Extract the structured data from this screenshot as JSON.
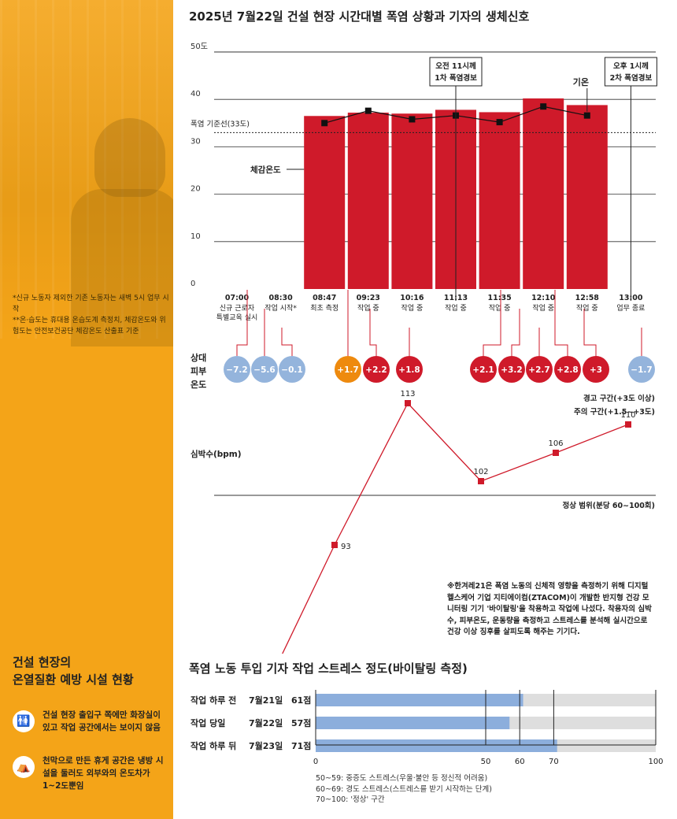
{
  "title": "2025년 7월22일 건설 현장 시간대별 폭염 상황과 기자의 생체신호",
  "sidebar": {
    "notes": [
      "*신규 노동자 제외한 기존 노동자는 새벽 5시 업무 시작",
      "**온·습도는 휴대용 온습도계 측정치, 체감온도와 위험도는 안전보건공단 체감온도 산출표 기준"
    ],
    "facility_title_1": "건설 현장의",
    "facility_title_2": "온열질환 예방 시설 현황",
    "items": [
      {
        "icon": "toilet-icon",
        "glyph": "🚻",
        "text": "건설 현장 출입구 쪽에만 화장실이 있고 작업 공간에서는 보이지 않음"
      },
      {
        "icon": "tent-icon",
        "glyph": "⛺",
        "text": "천막으로 만든 휴게 공간은 냉방 시설을 둘러도 외부와의 온도차가 1~2도뿐임"
      }
    ]
  },
  "chart_data": [
    {
      "type": "bar",
      "title": "2025년 7월22일 건설 현장 시간대별 폭염 상황과 기자의 생체신호",
      "ylim": [
        0,
        50
      ],
      "yticks": [
        "0",
        "10",
        "20",
        "30",
        "40",
        "50도"
      ],
      "threshold": {
        "value": 33,
        "label": "폭염 기준선(33도)"
      },
      "times": [
        "07:00",
        "08:30",
        "08:47",
        "09:23",
        "10:16",
        "11:13",
        "11:35",
        "12:10",
        "12:58",
        "13:00"
      ],
      "events": [
        "신규 근로자 특별교육 실시",
        "작업 시작*",
        "최초 측정",
        "작업 중",
        "작업 중",
        "작업 중",
        "작업 중",
        "작업 중",
        "작업 중",
        "업무 종료"
      ],
      "bars": {
        "label": "체감온도",
        "indices": [
          2,
          3,
          4,
          5,
          6,
          7,
          8
        ],
        "values": [
          36.5,
          37.2,
          37.0,
          37.8,
          37.3,
          40.2,
          38.8
        ]
      },
      "line": {
        "label": "기온",
        "indices": [
          2,
          3,
          4,
          5,
          6,
          7,
          8
        ],
        "values": [
          35.0,
          37.6,
          35.8,
          36.6,
          35.2,
          38.5,
          36.6
        ]
      },
      "alerts": [
        {
          "line1": "오전 11시께",
          "line2": "1차 폭염경보",
          "index": 5
        },
        {
          "line1": "오후 1시께",
          "line2": "2차 폭염경보",
          "index": 9
        }
      ]
    },
    {
      "type": "table",
      "title": "상대 피부 온도",
      "label_lines": [
        "상대",
        "피부",
        "온도"
      ],
      "values": [
        "−7.2",
        "−5.6",
        "−0.1",
        "+1.7",
        "+2.2",
        "+1.8",
        "+2.1",
        "+3.2",
        "+2.7",
        "+2.8",
        "+3",
        "−1.7"
      ],
      "zones": [
        "blue",
        "blue",
        "blue",
        "orange",
        "red",
        "red",
        "red",
        "red",
        "red",
        "red",
        "red",
        "blue"
      ],
      "legend": [
        "경고 구간(+3도 이상)",
        "주의 구간(+1.5~+3도)"
      ],
      "colors": {
        "blue": "#94b4dc",
        "orange": "#ee8a0e",
        "red": "#cf1a2a"
      }
    },
    {
      "type": "line",
      "ylabel": "심박수(bpm)",
      "points": [
        71,
        93,
        113,
        102,
        106,
        110
      ],
      "normal_line_value": 100,
      "normal_label": "정상 범위(분당 60~100회)",
      "note": "※한겨레21은 폭염 노동의 신체적 영향을 측정하기 위해 디지털 헬스케어 기업 지티에이컴(ZTACOM)이 개발한 반지형 건강 모니터링 기기 '바이탈링'을 착용하고 작업에 나섰다. 착용자의 심박수, 피부온도, 운동량을 측정하고 스트레스를 분석해 실시간으로 건강 이상 징후를 살피도록 해주는 기기다."
    },
    {
      "type": "bar",
      "title": "폭염 노동 투입 기자 작업 스트레스 정도(바이탈링 측정)",
      "xlim": [
        0,
        100
      ],
      "ticks": [
        "0",
        "50",
        "60",
        "70",
        "100"
      ],
      "rows": [
        {
          "label": "작업 하루 전",
          "date": "7월21일",
          "score_label": "61점",
          "value": 61
        },
        {
          "label": "작업 당일",
          "date": "7월22일",
          "score_label": "57점",
          "value": 57
        },
        {
          "label": "작업 하루 뒤",
          "date": "7월23일",
          "score_label": "71점",
          "value": 71
        }
      ],
      "legend": [
        "50~59: 중증도 스트레스(우울·불안 등 정신적 어려움)",
        "60~69: 경도 스트레스(스트레스를 받기 시작하는 단계)",
        "70~100: '정상' 구간"
      ]
    }
  ],
  "colors": {
    "bar": "#cf1a2a",
    "sidebar": "#f4a418",
    "stress_bar": "#8caedc",
    "stress_track": "#dedede"
  }
}
